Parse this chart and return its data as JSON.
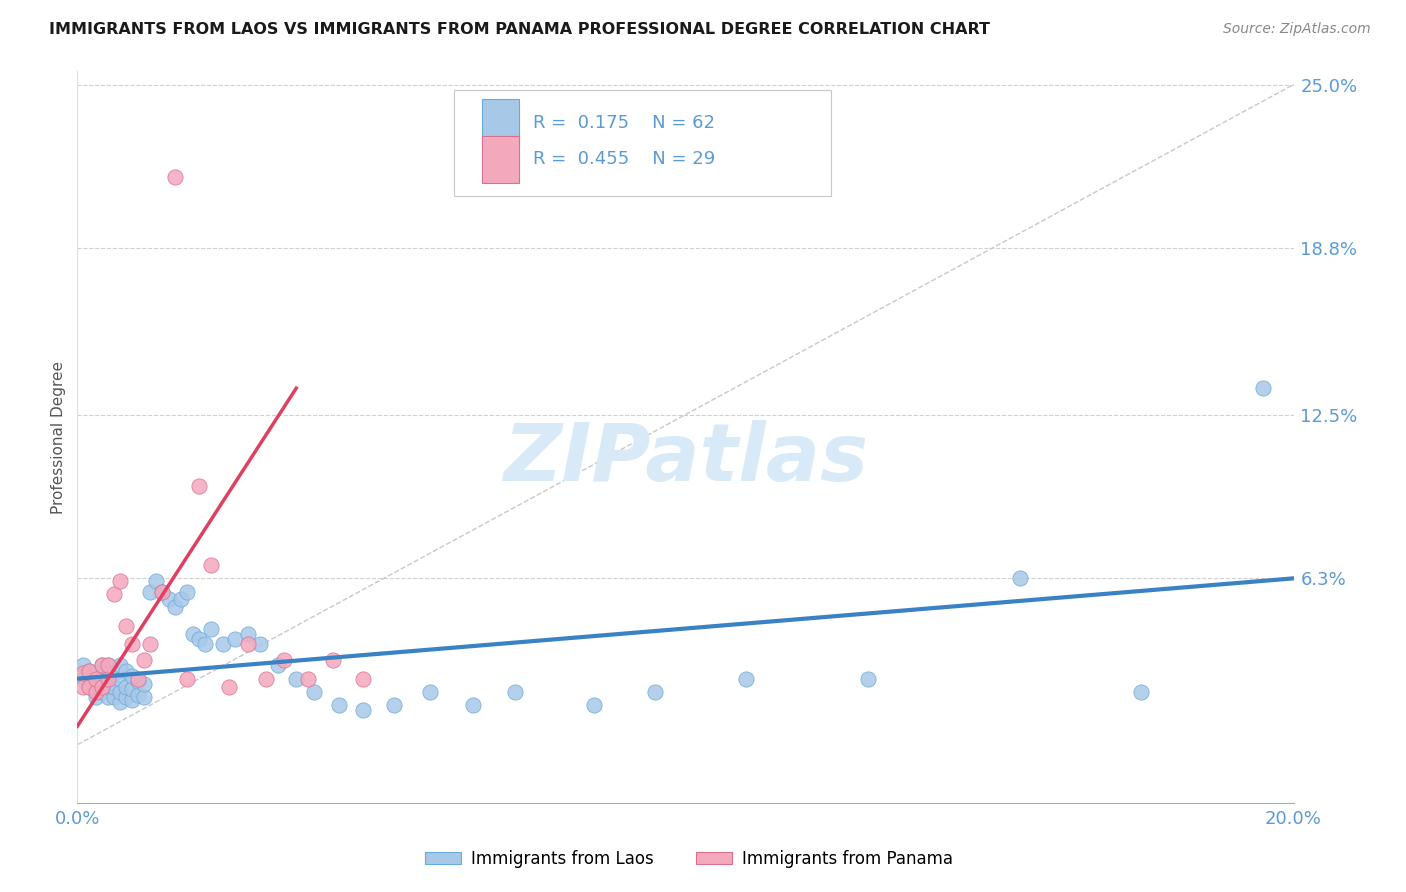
{
  "title": "IMMIGRANTS FROM LAOS VS IMMIGRANTS FROM PANAMA PROFESSIONAL DEGREE CORRELATION CHART",
  "source": "Source: ZipAtlas.com",
  "ylabel": "Professional Degree",
  "R1": "0.175",
  "N1": "62",
  "R2": "0.455",
  "N2": "29",
  "color_laos": "#a8c8e8",
  "color_laos_edge": "#6aaad8",
  "color_panama": "#f4a8bc",
  "color_panama_edge": "#d87090",
  "color_laos_line": "#3a82c4",
  "color_panama_line": "#e04060",
  "color_diag": "#c8c8c8",
  "color_title": "#1a1a1a",
  "color_source": "#888888",
  "color_axis_right": "#5b9bd5",
  "color_axis_bottom": "#5b9bd5",
  "watermark": "ZIPatlas",
  "watermark_color": "#d8eaf8",
  "legend1_label": "Immigrants from Laos",
  "legend2_label": "Immigrants from Panama",
  "xlim": [
    0.0,
    0.2
  ],
  "ylim": [
    -0.022,
    0.255
  ],
  "yticks": [
    0.063,
    0.125,
    0.188,
    0.25
  ],
  "ytick_labels": [
    "6.3%",
    "12.5%",
    "18.8%",
    "25.0%"
  ],
  "xticks": [
    0.0,
    0.2
  ],
  "xtick_labels": [
    "0.0%",
    "20.0%"
  ],
  "laos_line_x": [
    0.0,
    0.2
  ],
  "laos_line_y": [
    0.025,
    0.063
  ],
  "panama_line_x": [
    0.0,
    0.036
  ],
  "panama_line_y": [
    0.007,
    0.135
  ],
  "laos_x": [
    0.001,
    0.001,
    0.002,
    0.002,
    0.003,
    0.003,
    0.003,
    0.004,
    0.004,
    0.004,
    0.005,
    0.005,
    0.005,
    0.005,
    0.006,
    0.006,
    0.006,
    0.007,
    0.007,
    0.007,
    0.007,
    0.008,
    0.008,
    0.008,
    0.009,
    0.009,
    0.009,
    0.01,
    0.01,
    0.011,
    0.011,
    0.012,
    0.013,
    0.014,
    0.015,
    0.016,
    0.017,
    0.018,
    0.019,
    0.02,
    0.021,
    0.022,
    0.024,
    0.026,
    0.028,
    0.03,
    0.033,
    0.036,
    0.039,
    0.043,
    0.047,
    0.052,
    0.058,
    0.065,
    0.072,
    0.085,
    0.095,
    0.11,
    0.13,
    0.155,
    0.175,
    0.195
  ],
  "laos_y": [
    0.025,
    0.03,
    0.022,
    0.028,
    0.018,
    0.023,
    0.027,
    0.02,
    0.025,
    0.03,
    0.018,
    0.022,
    0.026,
    0.03,
    0.018,
    0.022,
    0.027,
    0.016,
    0.02,
    0.025,
    0.03,
    0.018,
    0.022,
    0.028,
    0.017,
    0.021,
    0.026,
    0.019,
    0.024,
    0.018,
    0.023,
    0.058,
    0.062,
    0.058,
    0.055,
    0.052,
    0.055,
    0.058,
    0.042,
    0.04,
    0.038,
    0.044,
    0.038,
    0.04,
    0.042,
    0.038,
    0.03,
    0.025,
    0.02,
    0.015,
    0.013,
    0.015,
    0.02,
    0.015,
    0.02,
    0.015,
    0.02,
    0.025,
    0.025,
    0.063,
    0.02,
    0.135
  ],
  "panama_x": [
    0.001,
    0.001,
    0.002,
    0.002,
    0.003,
    0.003,
    0.004,
    0.004,
    0.005,
    0.005,
    0.006,
    0.007,
    0.008,
    0.009,
    0.01,
    0.011,
    0.012,
    0.014,
    0.016,
    0.018,
    0.02,
    0.022,
    0.025,
    0.028,
    0.031,
    0.034,
    0.038,
    0.042,
    0.047
  ],
  "panama_y": [
    0.022,
    0.027,
    0.022,
    0.028,
    0.02,
    0.025,
    0.022,
    0.03,
    0.025,
    0.03,
    0.057,
    0.062,
    0.045,
    0.038,
    0.025,
    0.032,
    0.038,
    0.058,
    0.215,
    0.025,
    0.098,
    0.068,
    0.022,
    0.038,
    0.025,
    0.032,
    0.025,
    0.032,
    0.025
  ]
}
